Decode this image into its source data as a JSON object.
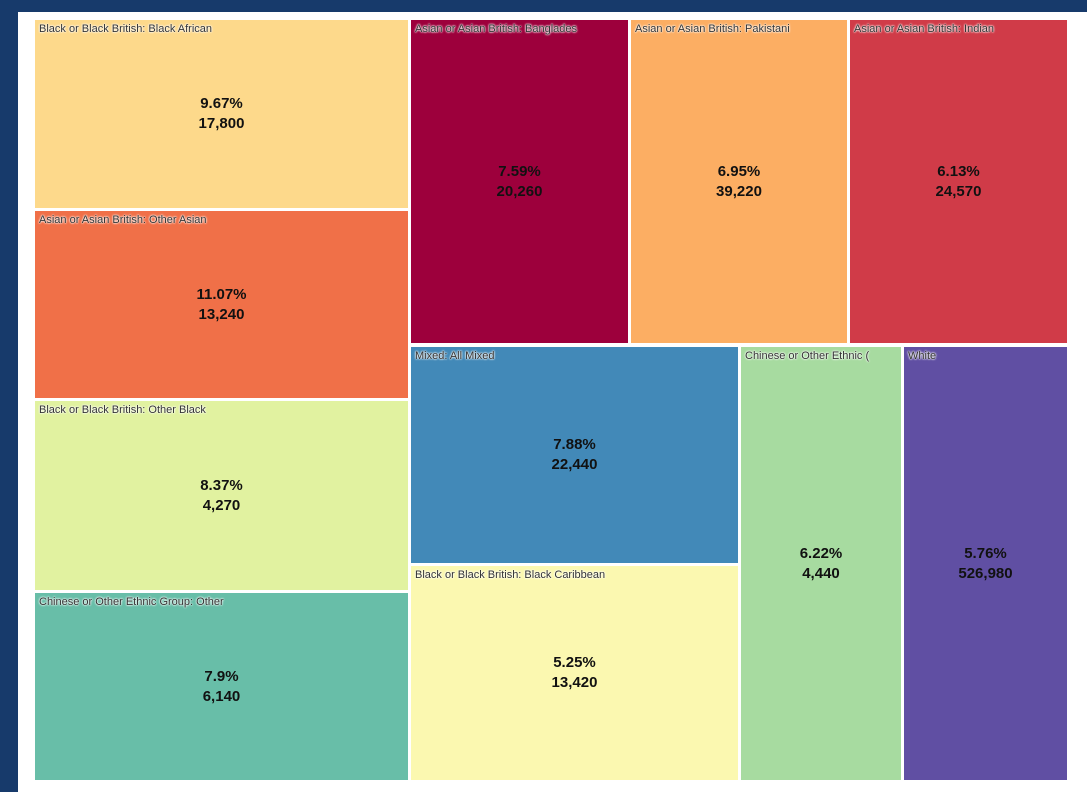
{
  "chart_data": {
    "type": "treemap",
    "categories": [
      "Black or Black British: Black African",
      "Asian or Asian British: Other Asian",
      "Black or Black British: Other Black",
      "Chinese or Other Ethnic Group: Other",
      "Asian or Asian British: Banglades",
      "Asian or Asian British: Pakistani",
      "Asian or Asian British: Indian",
      "Mixed: All Mixed",
      "Black or Black British: Black Caribbean",
      "Chinese or Other Ethnic (",
      "White"
    ],
    "percentages": [
      9.67,
      11.07,
      8.37,
      7.9,
      7.59,
      6.95,
      6.13,
      7.88,
      5.25,
      6.22,
      5.76
    ],
    "percentage_labels": [
      "9.67%",
      "11.07%",
      "8.37%",
      "7.9%",
      "7.59%",
      "6.95%",
      "6.13%",
      "7.88%",
      "5.25%",
      "6.22%",
      "5.76%"
    ],
    "values": [
      17800,
      13240,
      4270,
      6140,
      20260,
      39220,
      24570,
      22440,
      13420,
      4440,
      526980
    ],
    "value_labels": [
      "17,800",
      "13,240",
      "4,270",
      "6,140",
      "20,260",
      "39,220",
      "24,570",
      "22,440",
      "13,420",
      "4,440",
      "526,980"
    ],
    "colors": [
      "#fdd98b",
      "#f07048",
      "#e1f2a0",
      "#68bea8",
      "#9d003c",
      "#fcae63",
      "#d03b48",
      "#4289b8",
      "#fbf8b0",
      "#a7dba0",
      "#604fa3"
    ]
  }
}
